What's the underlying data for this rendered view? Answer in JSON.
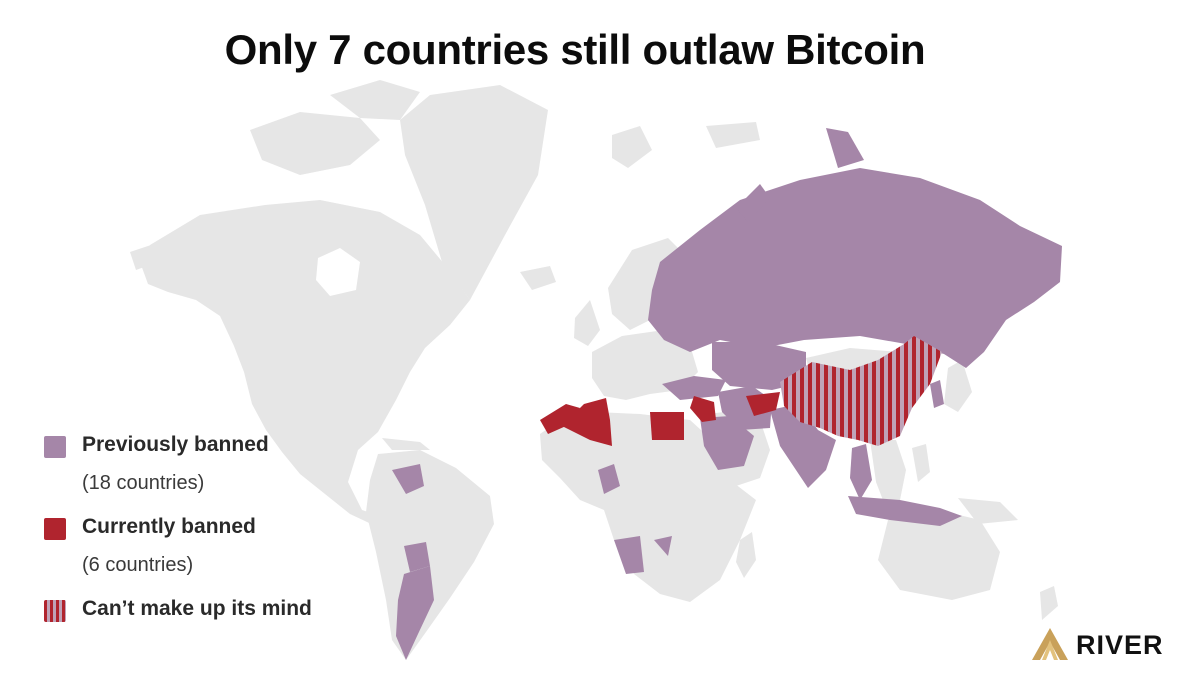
{
  "title": "Only 7 countries still outlaw Bitcoin",
  "colors": {
    "land": "#e6e6e6",
    "previously_banned": "#a586a8",
    "currently_banned": "#b0242e",
    "stripe_dark": "#b0242e",
    "stripe_light": "#bfa3b8",
    "brand_gold": "#c9a15a"
  },
  "legend": [
    {
      "key": "previously_banned",
      "label": "Previously banned",
      "count": "(18 countries)"
    },
    {
      "key": "currently_banned",
      "label": "Currently banned",
      "count": "(6 countries)"
    },
    {
      "key": "undecided",
      "label": "Can’t make up its mind",
      "count": ""
    }
  ],
  "regions": {
    "previously_banned": [
      "Russia",
      "Kazakhstan",
      "Iran",
      "Turkey",
      "Saudi Arabia",
      "India",
      "Pakistan",
      "Thailand",
      "Indonesia",
      "Vietnam",
      "Venezuela",
      "Argentina",
      "Bolivia",
      "Nigeria",
      "Namibia",
      "Zimbabwe",
      "Mozambique",
      "Korea"
    ],
    "currently_banned": [
      "Morocco",
      "Algeria",
      "Egypt",
      "Iraq",
      "Afghanistan",
      "Bangladesh"
    ],
    "undecided": [
      "China"
    ]
  },
  "brand": {
    "name": "RIVER",
    "icon": "river-logo-icon"
  }
}
